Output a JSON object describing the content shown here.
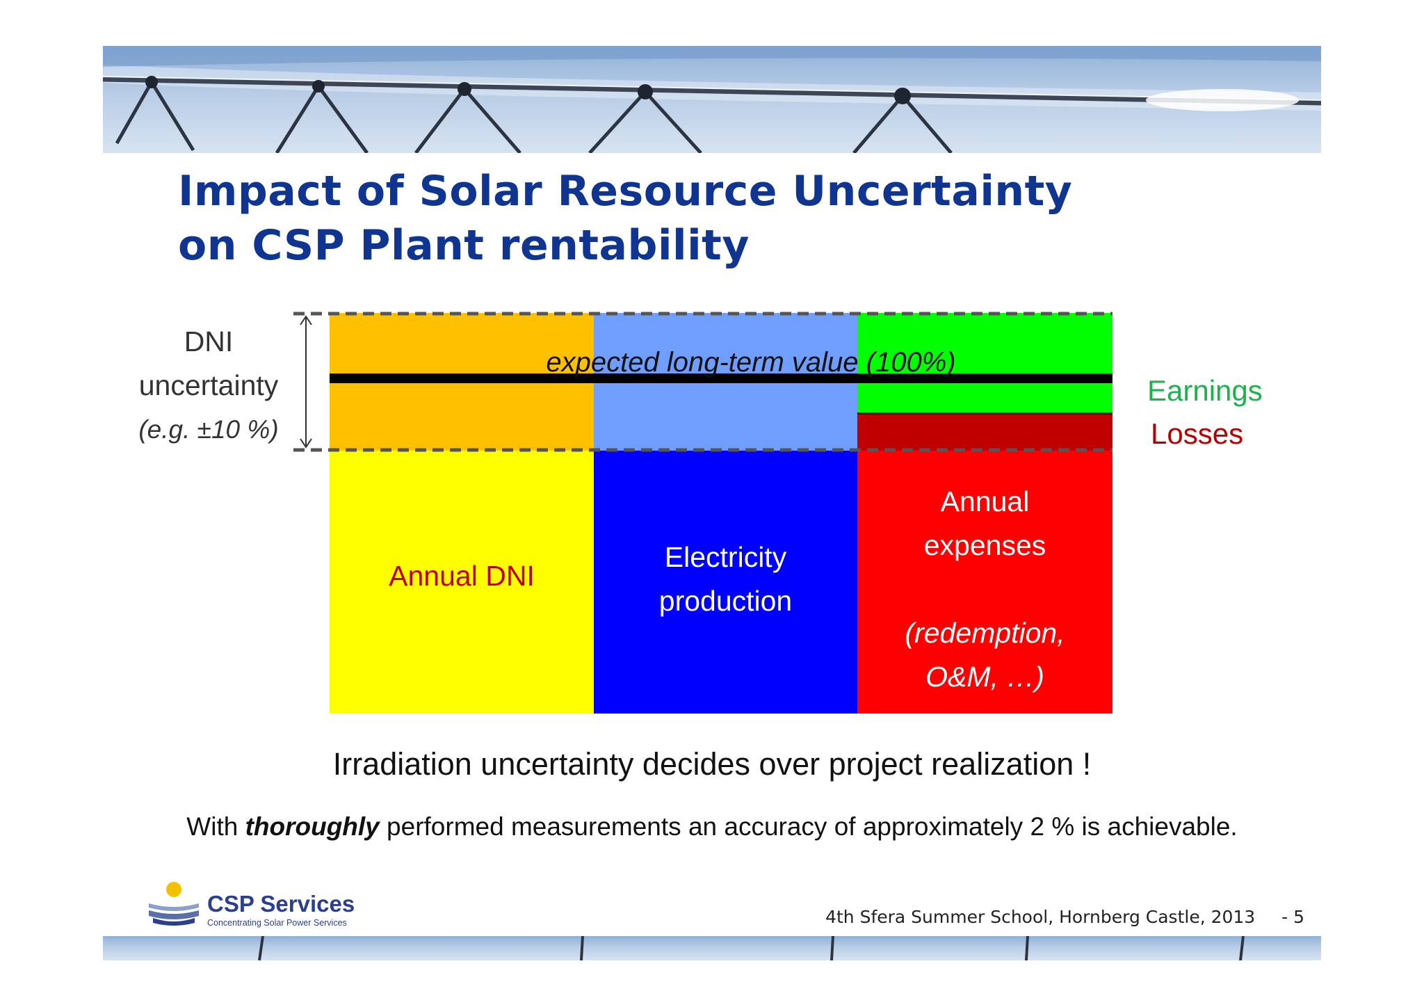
{
  "title": {
    "line1": "Impact of Solar Resource Uncertainty",
    "line2": "on CSP Plant rentability"
  },
  "diagram": {
    "uncertainty_label": {
      "line1": "DNI",
      "line2": "uncertainty",
      "line3": "(e.g. ±10 %)"
    },
    "expected_value_label": "expected long-term value (100%)",
    "blocks": {
      "annual_dni": "Annual DNI",
      "electricity_line1": "Electricity",
      "electricity_line2": "production",
      "expenses_line1": "Annual",
      "expenses_line2": "expenses",
      "expenses_line3": "(redemption,",
      "expenses_line4": "O&M, …)"
    },
    "legend": {
      "earnings": "Earnings",
      "losses": "Losses"
    },
    "colors": {
      "annual_dni": "#ffff00",
      "annual_dni_band": "#ffc000",
      "electricity": "#0000ff",
      "electricity_band": "#6f9eff",
      "expenses": "#ff0000",
      "earnings": "#00ff00",
      "losses": "#c00000"
    }
  },
  "conclusion": "Irradiation uncertainty decides over project realization !",
  "note": {
    "prefix": "With ",
    "emphasis": "thoroughly",
    "suffix": " performed measurements an accuracy of approximately 2 % is achievable."
  },
  "footer": {
    "logo_name": "CSP Services",
    "logo_tagline": "Concentrating Solar Power Services",
    "event": "4th Sfera Summer School, Hornberg Castle, 2013",
    "page": "- 5"
  }
}
